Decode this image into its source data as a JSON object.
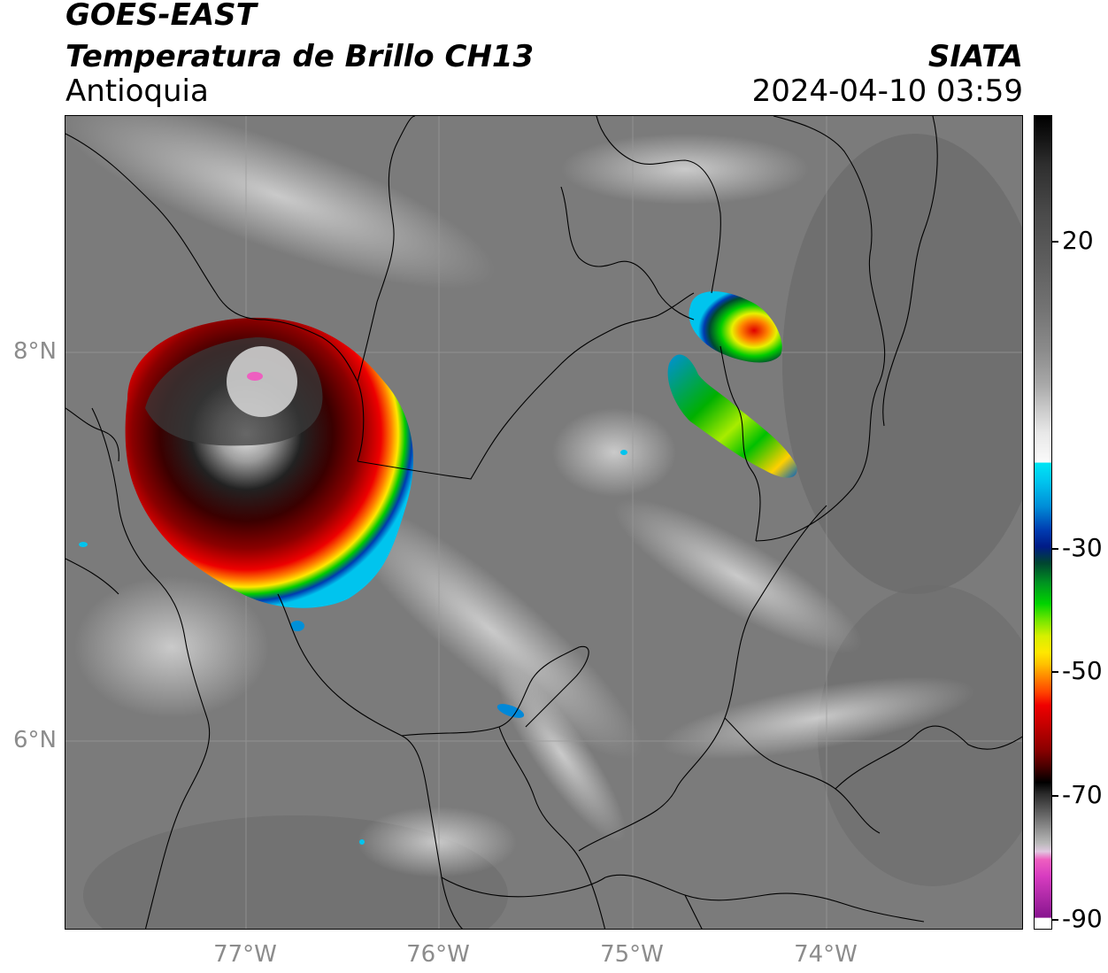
{
  "header": {
    "satellite": "GOES-EAST",
    "product": "Temperatura de Brillo CH13",
    "region": "Antioquia",
    "organization": "SIATA",
    "timestamp": "2024-04-10 03:59"
  },
  "map": {
    "lat_labels": [
      "8°N",
      "6°N"
    ],
    "lon_labels": [
      "77°W",
      "76°W",
      "75°W",
      "74°W"
    ],
    "gridlines": true,
    "basemap": "department borders"
  },
  "colorbar": {
    "ticks": [
      "20",
      "-30",
      "-50",
      "-70",
      "-90"
    ],
    "colors": {
      "warm_gray": "#7a7a7a",
      "cyan": "#00e5f5",
      "blue": "#003bb0",
      "green": "#00d400",
      "yellow": "#ffe800",
      "red": "#f00000",
      "dark_red": "#4a0000",
      "black": "#000000",
      "magenta": "#d83cc0"
    }
  }
}
